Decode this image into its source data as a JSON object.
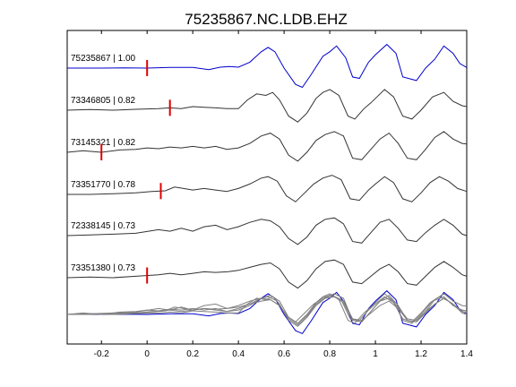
{
  "chart_data": {
    "type": "line",
    "title": "75235867.NC.LDB.EHZ",
    "xlabel": "",
    "ylabel": "",
    "xlim": [
      -0.35,
      1.4
    ],
    "xticks": [
      {
        "value": -0.2,
        "label": "-0.2"
      },
      {
        "value": 0,
        "label": "0"
      },
      {
        "value": 0.2,
        "label": "0.2"
      },
      {
        "value": 0.4,
        "label": "0.4"
      },
      {
        "value": 0.6,
        "label": "0.6"
      },
      {
        "value": 0.8,
        "label": "0.8"
      },
      {
        "value": 1.0,
        "label": "1"
      },
      {
        "value": 1.2,
        "label": "1.2"
      },
      {
        "value": 1.4,
        "label": "1.4"
      }
    ],
    "grid": false,
    "colors": {
      "reference": "#0000cc",
      "trace": "#333333",
      "stack": "#808080",
      "pick": "#dd0000"
    },
    "stack": {
      "series": [
        "t1",
        "t2",
        "t3",
        "t4",
        "t5",
        "t6"
      ]
    },
    "series": [
      {
        "id": "t1",
        "event": "75235867",
        "corr": "1.00",
        "label": "75235867 | 1.00",
        "pick": 0.0,
        "reference": true,
        "points": [
          [
            -0.35,
            0.0
          ],
          [
            -0.2,
            0.0
          ],
          [
            -0.1,
            0.01
          ],
          [
            0.0,
            0.0
          ],
          [
            0.1,
            0.02
          ],
          [
            0.2,
            0.02
          ],
          [
            0.27,
            -0.05
          ],
          [
            0.32,
            0.03
          ],
          [
            0.36,
            0.05
          ],
          [
            0.4,
            0.03
          ],
          [
            0.45,
            0.2
          ],
          [
            0.5,
            0.55
          ],
          [
            0.53,
            0.7
          ],
          [
            0.56,
            0.55
          ],
          [
            0.6,
            0.0
          ],
          [
            0.65,
            -0.55
          ],
          [
            0.68,
            -0.65
          ],
          [
            0.72,
            -0.2
          ],
          [
            0.77,
            0.4
          ],
          [
            0.8,
            0.55
          ],
          [
            0.83,
            0.75
          ],
          [
            0.87,
            0.35
          ],
          [
            0.9,
            -0.3
          ],
          [
            0.93,
            -0.35
          ],
          [
            0.97,
            0.2
          ],
          [
            1.0,
            0.45
          ],
          [
            1.05,
            0.8
          ],
          [
            1.09,
            0.5
          ],
          [
            1.12,
            -0.3
          ],
          [
            1.18,
            -0.42
          ],
          [
            1.22,
            0.0
          ],
          [
            1.26,
            0.3
          ],
          [
            1.3,
            0.75
          ],
          [
            1.34,
            0.5
          ],
          [
            1.37,
            0.15
          ],
          [
            1.4,
            0.02
          ]
        ]
      },
      {
        "id": "t2",
        "event": "73346805",
        "corr": "0.82",
        "label": "73346805 | 0.82",
        "pick": 0.1,
        "points": [
          [
            -0.35,
            0.0
          ],
          [
            -0.25,
            0.02
          ],
          [
            -0.15,
            0.0
          ],
          [
            -0.05,
            0.03
          ],
          [
            0.05,
            0.05
          ],
          [
            0.1,
            0.08
          ],
          [
            0.15,
            0.05
          ],
          [
            0.2,
            0.12
          ],
          [
            0.25,
            0.1
          ],
          [
            0.3,
            0.08
          ],
          [
            0.35,
            0.05
          ],
          [
            0.4,
            0.05
          ],
          [
            0.44,
            0.35
          ],
          [
            0.48,
            0.55
          ],
          [
            0.52,
            0.5
          ],
          [
            0.55,
            0.6
          ],
          [
            0.58,
            0.35
          ],
          [
            0.62,
            -0.2
          ],
          [
            0.66,
            -0.4
          ],
          [
            0.7,
            -0.1
          ],
          [
            0.74,
            0.4
          ],
          [
            0.77,
            0.6
          ],
          [
            0.8,
            0.7
          ],
          [
            0.84,
            0.5
          ],
          [
            0.88,
            -0.2
          ],
          [
            0.91,
            -0.3
          ],
          [
            0.95,
            0.05
          ],
          [
            0.98,
            0.25
          ],
          [
            1.0,
            0.4
          ],
          [
            1.04,
            0.7
          ],
          [
            1.08,
            0.45
          ],
          [
            1.12,
            -0.2
          ],
          [
            1.16,
            -0.3
          ],
          [
            1.2,
            0.0
          ],
          [
            1.25,
            0.45
          ],
          [
            1.3,
            0.6
          ],
          [
            1.34,
            0.3
          ],
          [
            1.38,
            0.15
          ],
          [
            1.4,
            0.12
          ]
        ]
      },
      {
        "id": "t3",
        "event": "73145321",
        "corr": "0.82",
        "label": "73145321 | 0.82",
        "pick": -0.2,
        "points": [
          [
            -0.35,
            0.0
          ],
          [
            -0.28,
            0.05
          ],
          [
            -0.2,
            0.0
          ],
          [
            -0.12,
            0.08
          ],
          [
            -0.05,
            0.1
          ],
          [
            0.0,
            0.15
          ],
          [
            0.05,
            0.12
          ],
          [
            0.1,
            0.18
          ],
          [
            0.15,
            0.15
          ],
          [
            0.2,
            0.2
          ],
          [
            0.25,
            0.15
          ],
          [
            0.3,
            0.2
          ],
          [
            0.35,
            0.1
          ],
          [
            0.4,
            0.15
          ],
          [
            0.45,
            0.3
          ],
          [
            0.5,
            0.55
          ],
          [
            0.54,
            0.65
          ],
          [
            0.58,
            0.45
          ],
          [
            0.62,
            -0.1
          ],
          [
            0.66,
            -0.3
          ],
          [
            0.7,
            0.0
          ],
          [
            0.74,
            0.4
          ],
          [
            0.78,
            0.6
          ],
          [
            0.82,
            0.7
          ],
          [
            0.86,
            0.55
          ],
          [
            0.9,
            -0.2
          ],
          [
            0.94,
            -0.25
          ],
          [
            0.98,
            0.1
          ],
          [
            1.02,
            0.45
          ],
          [
            1.06,
            0.65
          ],
          [
            1.1,
            0.3
          ],
          [
            1.14,
            -0.2
          ],
          [
            1.18,
            -0.25
          ],
          [
            1.22,
            0.1
          ],
          [
            1.26,
            0.5
          ],
          [
            1.3,
            0.7
          ],
          [
            1.34,
            0.45
          ],
          [
            1.38,
            0.3
          ],
          [
            1.4,
            0.28
          ]
        ]
      },
      {
        "id": "t4",
        "event": "73351770",
        "corr": "0.78",
        "label": "73351770 | 0.78",
        "pick": 0.06,
        "points": [
          [
            -0.35,
            0.0
          ],
          [
            -0.25,
            0.0
          ],
          [
            -0.15,
            0.02
          ],
          [
            -0.05,
            0.05
          ],
          [
            0.02,
            0.1
          ],
          [
            0.08,
            0.12
          ],
          [
            0.12,
            0.25
          ],
          [
            0.16,
            0.2
          ],
          [
            0.2,
            0.15
          ],
          [
            0.25,
            0.2
          ],
          [
            0.3,
            0.15
          ],
          [
            0.35,
            0.1
          ],
          [
            0.4,
            0.2
          ],
          [
            0.45,
            0.35
          ],
          [
            0.5,
            0.55
          ],
          [
            0.53,
            0.6
          ],
          [
            0.57,
            0.45
          ],
          [
            0.61,
            -0.05
          ],
          [
            0.65,
            -0.25
          ],
          [
            0.69,
            0.05
          ],
          [
            0.73,
            0.35
          ],
          [
            0.77,
            0.55
          ],
          [
            0.81,
            0.65
          ],
          [
            0.85,
            0.5
          ],
          [
            0.89,
            -0.15
          ],
          [
            0.93,
            -0.2
          ],
          [
            0.97,
            0.15
          ],
          [
            1.0,
            0.35
          ],
          [
            1.04,
            0.6
          ],
          [
            1.08,
            0.4
          ],
          [
            1.12,
            -0.15
          ],
          [
            1.16,
            -0.25
          ],
          [
            1.2,
            0.05
          ],
          [
            1.24,
            0.4
          ],
          [
            1.28,
            0.6
          ],
          [
            1.32,
            0.45
          ],
          [
            1.36,
            0.2
          ],
          [
            1.4,
            0.1
          ]
        ]
      },
      {
        "id": "t5",
        "event": "72338145",
        "corr": "0.73",
        "label": "72338145 | 0.73",
        "pick": null,
        "points": [
          [
            -0.35,
            0.0
          ],
          [
            -0.25,
            0.02
          ],
          [
            -0.15,
            0.05
          ],
          [
            -0.05,
            0.08
          ],
          [
            0.05,
            0.2
          ],
          [
            0.1,
            0.15
          ],
          [
            0.15,
            0.25
          ],
          [
            0.2,
            0.15
          ],
          [
            0.25,
            0.3
          ],
          [
            0.3,
            0.35
          ],
          [
            0.35,
            0.2
          ],
          [
            0.4,
            0.3
          ],
          [
            0.45,
            0.45
          ],
          [
            0.5,
            0.55
          ],
          [
            0.54,
            0.5
          ],
          [
            0.58,
            0.3
          ],
          [
            0.62,
            -0.1
          ],
          [
            0.66,
            -0.3
          ],
          [
            0.7,
            -0.05
          ],
          [
            0.74,
            0.35
          ],
          [
            0.78,
            0.55
          ],
          [
            0.82,
            0.6
          ],
          [
            0.86,
            0.4
          ],
          [
            0.9,
            -0.2
          ],
          [
            0.94,
            -0.25
          ],
          [
            0.98,
            0.1
          ],
          [
            1.02,
            0.45
          ],
          [
            1.06,
            0.55
          ],
          [
            1.1,
            0.25
          ],
          [
            1.14,
            -0.15
          ],
          [
            1.18,
            -0.2
          ],
          [
            1.22,
            0.1
          ],
          [
            1.26,
            0.35
          ],
          [
            1.3,
            0.55
          ],
          [
            1.34,
            0.35
          ],
          [
            1.38,
            0.05
          ],
          [
            1.4,
            0.0
          ]
        ]
      },
      {
        "id": "t6",
        "event": "73351380",
        "corr": "0.73",
        "label": "73351380 | 0.73",
        "pick": 0.0,
        "points": [
          [
            -0.35,
            0.0
          ],
          [
            -0.25,
            0.02
          ],
          [
            -0.15,
            0.0
          ],
          [
            -0.05,
            0.05
          ],
          [
            0.05,
            0.1
          ],
          [
            0.1,
            0.15
          ],
          [
            0.15,
            0.1
          ],
          [
            0.2,
            0.15
          ],
          [
            0.25,
            0.2
          ],
          [
            0.3,
            0.18
          ],
          [
            0.35,
            0.2
          ],
          [
            0.4,
            0.25
          ],
          [
            0.45,
            0.35
          ],
          [
            0.5,
            0.45
          ],
          [
            0.54,
            0.5
          ],
          [
            0.58,
            0.3
          ],
          [
            0.62,
            -0.15
          ],
          [
            0.66,
            -0.35
          ],
          [
            0.7,
            -0.1
          ],
          [
            0.74,
            0.3
          ],
          [
            0.78,
            0.55
          ],
          [
            0.82,
            0.6
          ],
          [
            0.86,
            0.45
          ],
          [
            0.9,
            -0.15
          ],
          [
            0.94,
            -0.2
          ],
          [
            0.98,
            0.05
          ],
          [
            1.02,
            0.3
          ],
          [
            1.06,
            0.45
          ],
          [
            1.1,
            0.2
          ],
          [
            1.14,
            -0.2
          ],
          [
            1.18,
            -0.25
          ],
          [
            1.22,
            0.05
          ],
          [
            1.26,
            0.35
          ],
          [
            1.3,
            0.55
          ],
          [
            1.34,
            0.35
          ],
          [
            1.38,
            0.1
          ],
          [
            1.4,
            0.05
          ]
        ]
      }
    ]
  }
}
